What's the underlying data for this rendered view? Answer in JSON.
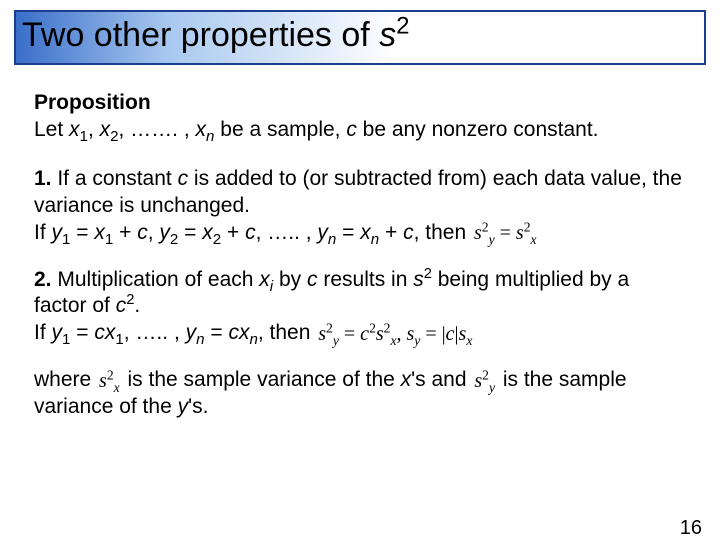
{
  "title": {
    "pre": "Two other properties of ",
    "var": "s",
    "exp": "2"
  },
  "prop_heading": "Proposition",
  "prop_text": {
    "t1": "Let ",
    "x": "x",
    "s1": "1",
    "comma1": ", ",
    "s2": "2",
    "dots1": ", ……. , ",
    "sn": "n",
    "t2": " be a sample, ",
    "c": "c",
    "t3": " be any nonzero constant."
  },
  "item1": {
    "num": "1.",
    "t1": " If a constant ",
    "c": "c",
    "t2": " is added to (or subtracted from) each data value, the variance is unchanged.",
    "t3": "If ",
    "y": "y",
    "s1": "1",
    "eq": " = ",
    "x": "x",
    "plus": " + ",
    "c2": "c",
    "comma": ", ",
    "s2": "2",
    "dots": ", ….. , ",
    "sn": "n",
    "then": ", then  "
  },
  "item2": {
    "num": "2.",
    "t1": " Multiplication of each ",
    "x": "x",
    "si": "i",
    "t2": " by ",
    "c": "c",
    "t3": " results in ",
    "s": "s",
    "e2": "2",
    "t4": " being multiplied by a factor of ",
    "c2": "c",
    "period": ".",
    "t5": "If ",
    "y": "y",
    "s1": "1",
    "eq": " = ",
    "cx": "cx",
    "dots": ", ….. , ",
    "sn": "n",
    "then": ", then  "
  },
  "where": {
    "t1": "where ",
    "t2": " is the sample variance of the ",
    "xs": "x",
    "t3": "'s and ",
    "t4": " is the sample variance of the ",
    "ys": "y",
    "t5": "'s."
  },
  "formula1": {
    "sy2": "s",
    "eq": " = ",
    "sx2": "s"
  },
  "formula2": {
    "s": "s",
    "eq1": " = ",
    "c": "c",
    "comma": ",   ",
    "eq2": " = |",
    "c2": "c",
    "bar": "|"
  },
  "inline": {
    "sx2": "s",
    "sy2": "s"
  },
  "page": "16",
  "colors": {
    "border": "#1a3d8f",
    "grad_start": "#3a6fc9",
    "grad_mid": "#a8c8ef",
    "text": "#000000",
    "bg": "#ffffff"
  }
}
